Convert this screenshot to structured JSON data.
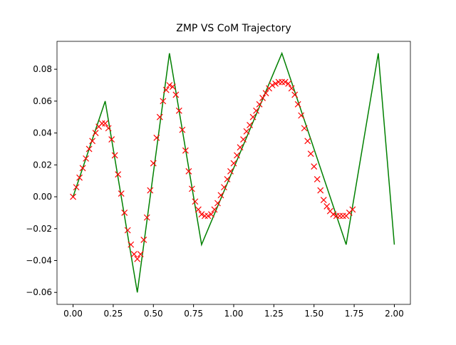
{
  "chart_data": {
    "type": "line",
    "title": "ZMP VS CoM Trajectory",
    "xlim": [
      -0.1,
      2.1
    ],
    "ylim": [
      -0.0675,
      0.0975
    ],
    "xticks": [
      {
        "value": 0,
        "label": "0.00"
      },
      {
        "value": 0.25,
        "label": "0.25"
      },
      {
        "value": 0.5,
        "label": "0.50"
      },
      {
        "value": 0.75,
        "label": "0.75"
      },
      {
        "value": 1,
        "label": "1.00"
      },
      {
        "value": 1.25,
        "label": "1.25"
      },
      {
        "value": 1.5,
        "label": "1.50"
      },
      {
        "value": 1.75,
        "label": "1.75"
      },
      {
        "value": 2,
        "label": "2.00"
      }
    ],
    "yticks": [
      {
        "value": -0.06,
        "label": "−0.06"
      },
      {
        "value": -0.04,
        "label": "−0.04"
      },
      {
        "value": -0.02,
        "label": "−0.02"
      },
      {
        "value": 0,
        "label": "0.00"
      },
      {
        "value": 0.02,
        "label": "0.02"
      },
      {
        "value": 0.04,
        "label": "0.04"
      },
      {
        "value": 0.06,
        "label": "0.06"
      },
      {
        "value": 0.08,
        "label": "0.08"
      }
    ],
    "series": [
      {
        "color": "#008000",
        "marker": "none",
        "x": [
          0,
          0.2,
          0.4,
          0.6,
          0.8,
          1.3,
          1.7,
          1.9,
          2.0
        ],
        "values": [
          0,
          0.06,
          -0.06,
          0.09,
          -0.03,
          0.09,
          -0.03,
          0.09,
          -0.03
        ]
      },
      {
        "color": "#ff0000",
        "marker": "x",
        "x": [
          0,
          0.02,
          0.04,
          0.06,
          0.08,
          0.1,
          0.12,
          0.14,
          0.16,
          0.18,
          0.2,
          0.22,
          0.24,
          0.26,
          0.28,
          0.3,
          0.32,
          0.34,
          0.36,
          0.38,
          0.4,
          0.42,
          0.44,
          0.46,
          0.48,
          0.5,
          0.52,
          0.54,
          0.56,
          0.58,
          0.6,
          0.62,
          0.64,
          0.66,
          0.68,
          0.7,
          0.72,
          0.74,
          0.76,
          0.78,
          0.8,
          0.82,
          0.84,
          0.86,
          0.88,
          0.9,
          0.92,
          0.94,
          0.96,
          0.98,
          1.0,
          1.02,
          1.04,
          1.06,
          1.08,
          1.1,
          1.12,
          1.14,
          1.16,
          1.18,
          1.2,
          1.22,
          1.24,
          1.26,
          1.28,
          1.3,
          1.32,
          1.34,
          1.36,
          1.38,
          1.4,
          1.42,
          1.44,
          1.46,
          1.48,
          1.5,
          1.52,
          1.54,
          1.56,
          1.58,
          1.6,
          1.62,
          1.64,
          1.66,
          1.68,
          1.7,
          1.72,
          1.74
        ],
        "values": [
          0,
          0.006,
          0.012,
          0.018,
          0.024,
          0.03,
          0.035,
          0.04,
          0.044,
          0.046,
          0.046,
          0.043,
          0.036,
          0.026,
          0.014,
          0.002,
          -0.01,
          -0.021,
          -0.03,
          -0.036,
          -0.039,
          -0.036,
          -0.027,
          -0.013,
          0.004,
          0.021,
          0.037,
          0.05,
          0.06,
          0.067,
          0.07,
          0.069,
          0.064,
          0.054,
          0.042,
          0.029,
          0.016,
          0.005,
          -0.003,
          -0.008,
          -0.011,
          -0.012,
          -0.012,
          -0.011,
          -0.008,
          -0.004,
          0.001,
          0.006,
          0.011,
          0.016,
          0.021,
          0.026,
          0.031,
          0.036,
          0.041,
          0.045,
          0.05,
          0.054,
          0.058,
          0.062,
          0.065,
          0.068,
          0.07,
          0.071,
          0.072,
          0.072,
          0.072,
          0.071,
          0.068,
          0.064,
          0.058,
          0.051,
          0.043,
          0.035,
          0.027,
          0.019,
          0.011,
          0.004,
          -0.002,
          -0.006,
          -0.009,
          -0.011,
          -0.012,
          -0.012,
          -0.012,
          -0.012,
          -0.01,
          -0.008
        ]
      }
    ]
  }
}
